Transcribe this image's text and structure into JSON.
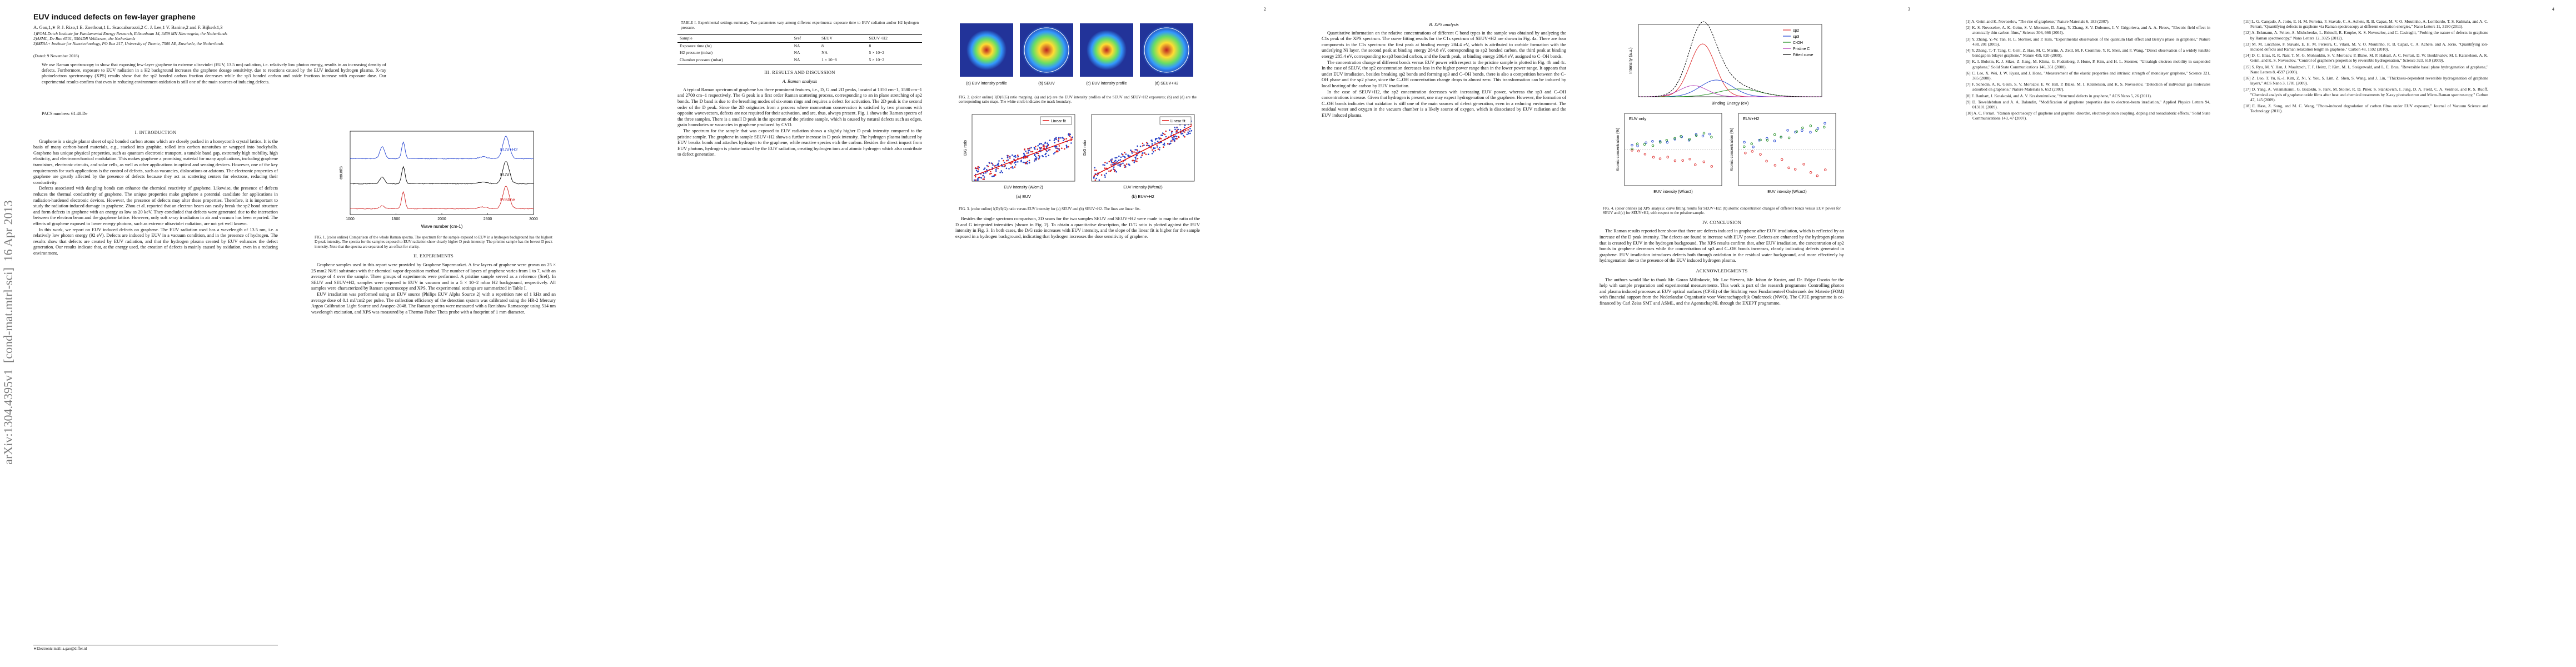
{
  "sidebar": "arXiv:1304.4395v1  [cond-mat.mtrl-sci]  16 Apr 2013",
  "page_numbers": [
    "2",
    "3",
    "4"
  ],
  "header": {
    "title": "EUV induced defects on few-layer graphene",
    "authors": "A. Gao,1,∗ P. J. Rizo,1 E. Zoethout,1 L. Scaccabarozzi,2 C. J. Lee,1 V. Banine,2 and F. Bijkerk1,3",
    "affiliations": [
      "1)FOM-Dutch Institute for Fundamental Energy Research, Edisonbaan 14, 3439 MN Nieuwegein, the Netherlands",
      "2)ASML, De Run 6501, 5504DR Veldhoven, the Netherlands",
      "3)MESA+ Institute for Nanotechnology, PO Box 217, University of Twente, 7500 AE, Enschede, the Netherlands"
    ],
    "date": "(Dated: 9 November 2018)",
    "abstract": "We use Raman spectroscopy to show that exposing few-layer graphene to extreme ultraviolet (EUV, 13.5 nm) radiation, i.e. relatively low photon energy, results in an increasing density of defects. Furthermore, exposure to EUV radiation in a H2 background increases the graphene dosage sensitivity, due to reactions caused by the EUV induced hydrogen plasma. X-ray photoelectron spectroscopy (XPS) results show that the sp2 bonded carbon fraction decreases while the sp3 bonded carbon and oxide fractions increase with exposure dose. Our experimental results confirm that even in reducing environment oxidation is still one of the main sources of inducing defects.",
    "pacs": "PACS numbers: 61.48.De"
  },
  "footnote": "∗Electronic mail: a.gao@differ.nl",
  "body": {
    "intro": {
      "heading": "I.  INTRODUCTION",
      "paragraphs": [
        "Graphene is a single planar sheet of sp2 bonded carbon atoms which are closely packed in a honeycomb crystal lattice. It is the basis of many carbon-based materials, e.g., stacked into graphite, rolled into carbon nanotubes or wrapped into buckyballs. Graphene has unique physical properties, such as quantum electronic transport, a tunable band gap, extremely high mobility, high elasticity, and electromechanical modulation. This makes graphene a promising material for many applications, including graphene transistors, electronic circuits, and solar cells, as well as other applications in optical and sensing devices. However, one of the key requirements for such applications is the control of defects, such as vacancies, dislocations or adatoms. The electronic properties of graphene are greatly affected by the presence of defects because they act as scattering centers for electrons, reducing their conductivity.",
        "Defects associated with dangling bonds can enhance the chemical reactivity of graphene. Likewise, the presence of defects reduces the thermal conductivity of graphene. The unique properties make graphene a potential candidate for applications in radiation-hardened electronic devices. However, the presence of defects may alter these properties. Therefore, it is important to study the radiation-induced damage in graphene. Zhou et al. reported that an electron beam can easily break the sp2 bond structure and form defects in graphene with an energy as low as 20 keV. They concluded that defects were generated due to the interaction between the electron beam and the graphene lattice. However, only soft x-ray irradiation in air and vacuum has been reported. The effects of graphene exposed to lower energy photons, such as extreme ultraviolet radiation, are not yet well known.",
        "In this work, we report on EUV induced defects on graphene. The EUV radiation used has a wavelength of 13.5 nm, i.e. a relatively low photon energy (92 eV). Defects are induced by EUV in a vacuum condition, and in the presence of hydrogen. The results show that defects are created by EUV radiation, and that the hydrogen plasma created by EUV enhances the defect generation. Our results indicate that, at the energy used, the creation of defects is mainly caused by oxidation, even in a reducing environment."
      ]
    },
    "experiments": {
      "heading": "II.  EXPERIMENTS",
      "paragraphs": [
        "Graphene samples used in this report were provided by Graphene Supermarket. A few layers of graphene were grown on 25 × 25 mm2 Ni/Si substrates with the chemical vapor deposition method. The number of layers of graphene varies from 1 to 7, with an average of 4 over the sample. Three groups of experiments were performed. A pristine sample served as a reference (Sref). In SEUV and SEUV+H2, samples were exposed to EUV in vacuum and in a 5 × 10−2 mbar H2 background, respectively. All samples were characterized by Raman spectroscopy and XPS. The experimental settings are summarized in Table I.",
        "EUV irradiation was performed using an EUV source (Philips EUV Alpha Source 2) with a repetition rate of 1 kHz and an average dose of 0.1 mJ/cm2 per pulse. The collection efficiency of the detection system was calibrated using the HR-2 Mercury Argon Calibration Light Source and Avaspec-2048. The Raman spectra were measured with a Renishaw Ramascope using 514 nm wavelength excitation, and XPS was measured by a Thermo Fisher Theta probe with a footprint of 1 mm diameter."
      ]
    },
    "results": {
      "heading": "III.  RESULTS AND DISCUSSION"
    },
    "raman": {
      "heading": "A.  Raman analysis",
      "paragraphs": [
        "A typical Raman spectrum of graphene has three prominent features, i.e., D, G and 2D peaks, located at 1350 cm−1, 1580 cm−1 and 2700 cm−1 respectively. The G peak is a first order Raman scattering process, corresponding to an in plane stretching of sp2 bonds. The D band is due to the breathing modes of six-atom rings and requires a defect for activation. The 2D peak is the second order of the D peak. Since the 2D originates from a process where momentum conservation is satisfied by two phonons with opposite wavevectors, defects are not required for their activation, and are, thus, always present. Fig. 1 shows the Raman spectra of the three samples. There is a small D peak in the spectrum of the pristine sample, which is caused by natural defects such as edges, grain boundaries or vacancies in graphene produced by CVD.",
        "The spectrum for the sample that was exposed to EUV radiation shows a slightly higher D peak intensity compared to the pristine sample. The graphene in sample SEUV+H2 shows a further increase in D peak intensity. The hydrogen plasma induced by EUV breaks bonds and attaches hydrogen to the graphene, while reactive species etch the carbon. Besides the direct impact from EUV photons, hydrogen is photo-ionized by the EUV radiation, creating hydrogen ions and atomic hydrogen which also contribute to defect generation.",
        "Besides the single spectrum comparison, 2D scans for the two samples SEUV and SEUV+H2 were made to map the ratio of the D and G integrated intensities (shown in Fig. 2). To obtain a quantitative description, the D/G ratio is plotted against the EUV intensity in Fig. 3. In both cases, the D/G ratio increases with EUV intensity, and the slope of the linear fit is higher for the sample exposed in a hydrogen background, indicating that hydrogen increases the dose sensitivity of graphene."
      ]
    },
    "xps": {
      "heading": "B.  XPS analysis",
      "paragraphs": [
        "Quantitative information on the relative concentrations of different C bond types in the sample was obtained by analyzing the C1s peak of the XPS spectrum. The curve fitting results for the C1s spectrum of SEUV+H2 are shown in Fig. 4a. There are four components in the C1s spectrum: the first peak at binding energy 284.4 eV, which is attributed to carbide formation with the underlying Ni layer, the second peak at binding energy 284.8 eV, corresponding to sp2 bonded carbon, the third peak at binding energy 285.4 eV, corresponding to sp3 bonded carbon, and the fourth peak, at binding energy 286.4 eV, assigned to C–OH bonds.",
        "The concentration change of different bonds versus EUV power with respect to the pristine sample is plotted in Fig. 4b and 4c. In the case of SEUV, the sp2 concentration decreases less in the higher power range than in the lower power range. It appears that under EUV irradiation, besides breaking sp2 bonds and forming sp3 and C–OH bonds, there is also a competition between the C–OH phase and the sp2 phase, since the C–OH concentration change drops to almost zero. This transformation can be induced by local heating of the carbon by EUV irradiation.",
        "In the case of SEUV+H2, the sp2 concentration decreases with increasing EUV power, whereas the sp3 and C–OH concentrations increase. Given that hydrogen is present, one may expect hydrogenation of the graphene. However, the formation of C–OH bonds indicates that oxidation is still one of the main sources of defect generation, even in a reducing environment. The residual water and oxygen in the vacuum chamber is a likely source of oxygen, which is dissociated by EUV radiation and the EUV induced plasma."
      ]
    },
    "conclusion": {
      "heading": "IV.  CONCLUSION",
      "paragraphs": [
        "The Raman results reported here show that there are defects induced in graphene after EUV irradiation, which is reflected by an increase of the D peak intensity. The defects are found to increase with EUV power. Defects are enhanced by the hydrogen plasma that is created by EUV in the hydrogen background. The XPS results confirm that, after EUV irradiation, the concentration of sp2 bonds in graphene decreases while the concentration of sp3 and C–OH bonds increases, clearly indicating defects generated in graphene. EUV irradiation introduces defects both through oxidation in the residual water background, and more effectively by hydrogenation due to the presence of the EUV induced hydrogen plasma."
      ]
    },
    "acknowledgments": {
      "heading": "ACKNOWLEDGMENTS",
      "paragraphs": [
        "The authors would like to thank Mr. Goran Milinkovic, Mr. Luc Stevens, Mr. Johan de Kuster, and Dr. Edgar Osorio for the help with sample preparation and experimental measurements. This work is part of the research programme Controlling photon and plasma induced processes at EUV optical surfaces (CP3E) of the Stichting voor Fundamenteel Onderzoek der Materie (FOM) with financial support from the Nederlandse Organisatie voor Wetenschappelijk Onderzoek (NWO). The CP3E programme is co-financed by Carl Zeiss SMT and ASML, and the AgentschapNL through the EXEPT programme."
      ]
    }
  },
  "table": {
    "caption": "TABLE I. Experimental settings summary. Two parameters vary among different experiments: exposure time to EUV radiation and/or H2 hydrogen pressure.",
    "columns": [
      "Sample",
      "Sref",
      "SEUV",
      "SEUV+H2"
    ],
    "rows": [
      [
        "Exposure time (hr)",
        "NA",
        "8",
        "8"
      ],
      [
        "H2 pressure (mbar)",
        "NA",
        "NA",
        "5 × 10−2"
      ],
      [
        "Chamber pressure (mbar)",
        "NA",
        "1 × 10−8",
        "5 × 10−2"
      ]
    ]
  },
  "figures": [
    {
      "caption": "FIG. 1. (color online) Comparison of the whole Raman spectra. The spectrum for the sample exposed to EUV in a hydrogen background has the highest D peak intensity. The spectra for the samples exposed to EUV radiation show clearly higher D peak intensity. The pristine sample has the lowest D peak intensity. Note that the spectra are separated by an offset for clarity.",
      "ylabel": "counts",
      "xlabel": "Wave number (cm-1)",
      "curves": [
        "EUV+H2",
        "EUV",
        "Pristine"
      ],
      "xticks": [
        "1000",
        "1500",
        "2000",
        "2500",
        "3000"
      ]
    },
    {
      "caption": "FIG. 2. (color online) I(D)/I(G) ratio mapping. (a) and (c) are the EUV intensity profiles of the SEUV and SEUV+H2 exposures; (b) and (d) are the corresponding ratio maps. The white circle indicates the mask boundary.",
      "panels": [
        "(a) EUV intensity profile",
        "(b) SEUV",
        "(c) EUV intensity profile",
        "(d) SEUV+H2"
      ]
    },
    {
      "caption": "FIG. 3. (color online) I(D)/I(G) ratio versus EUV intensity for (a) SEUV and (b) SEUV+H2. The lines are linear fits.",
      "ylabel": "D/G ratio",
      "xlabel": "EUV intensity (W/cm2)",
      "legend": "Linear fit",
      "panels": [
        "(a) EUV",
        "(b) EUV+H2"
      ]
    },
    {
      "caption": "FIG. 4. (color online) (a) XPS analysis: curve fitting results for SEUV+H2; (b) atomic concentration changes of different bonds versus EUV power for SEUV and (c) for SEUV+H2, with respect to the pristine sample.",
      "xlabel": "Binding Energy (eV)",
      "ylabel": "Intensity (a.u.)",
      "legend": [
        "sp2",
        "sp3",
        "C-OH",
        "Pristine C",
        "Fitted curve"
      ],
      "panels": [
        "EUV only",
        "EUV+H2"
      ],
      "panel_ylabel": "Atomic concentration (%)",
      "panel_xlabel": "EUV intensity (W/cm2)"
    }
  ],
  "references": [
    "[1] A. Geim and K. Novoselov, \"The rise of graphene,\" Nature Materials 6, 183 (2007).",
    "[2] K. S. Novoselov, A. K. Geim, S. V. Morozov, D. Jiang, Y. Zhang, S. V. Dubonos, I. V. Grigorieva, and A. A. Firsov, \"Electric field effect in atomically thin carbon films,\" Science 306, 666 (2004).",
    "[3] Y. Zhang, Y.-W. Tan, H. L. Stormer, and P. Kim, \"Experimental observation of the quantum Hall effect and Berry's phase in graphene,\" Nature 438, 201 (2005).",
    "[4] Y. Zhang, T.-T. Tang, C. Girit, Z. Hao, M. C. Martin, A. Zettl, M. F. Crommie, Y. R. Shen, and F. Wang, \"Direct observation of a widely tunable bandgap in bilayer graphene,\" Nature 459, 820 (2009).",
    "[5] K. I. Bolotin, K. J. Sikes, Z. Jiang, M. Klima, G. Fudenberg, J. Hone, P. Kim, and H. L. Stormer, \"Ultrahigh electron mobility in suspended graphene,\" Solid State Communications 146, 351 (2008).",
    "[6] C. Lee, X. Wei, J. W. Kysar, and J. Hone, \"Measurement of the elastic properties and intrinsic strength of monolayer graphene,\" Science 321, 385 (2008).",
    "[7] F. Schedin, A. K. Geim, S. V. Morozov, E. W. Hill, P. Blake, M. I. Katsnelson, and K. S. Novoselov, \"Detection of individual gas molecules adsorbed on graphene,\" Nature Materials 6, 652 (2007).",
    "[8] F. Banhart, J. Kotakoski, and A. V. Krasheninnikov, \"Structural defects in graphene,\" ACS Nano 5, 26 (2011).",
    "[9] D. Teweldebrhan and A. A. Balandin, \"Modification of graphene properties due to electron-beam irradiation,\" Applied Physics Letters 94, 013101 (2009).",
    "[10] A. C. Ferrari, \"Raman spectroscopy of graphene and graphite: disorder, electron-phonon coupling, doping and nonadiabatic effects,\" Solid State Communications 143, 47 (2007).",
    "[11] L. G. Cançado, A. Jorio, E. H. M. Ferreira, F. Stavale, C. A. Achete, R. B. Capaz, M. V. O. Moutinho, A. Lombardo, T. S. Kulmala, and A. C. Ferrari, \"Quantifying defects in graphene via Raman spectroscopy at different excitation energies,\" Nano Letters 11, 3190 (2011).",
    "[12] A. Eckmann, A. Felten, A. Mishchenko, L. Britnell, R. Krupke, K. S. Novoselov, and C. Casiraghi, \"Probing the nature of defects in graphene by Raman spectroscopy,\" Nano Letters 12, 3925 (2012).",
    "[13] M. M. Lucchese, F. Stavale, E. H. M. Ferreira, C. Vilani, M. V. O. Moutinho, R. B. Capaz, C. A. Achete, and A. Jorio, \"Quantifying ion-induced defects and Raman relaxation length in graphene,\" Carbon 48, 1592 (2010).",
    "[14] D. C. Elias, R. R. Nair, T. M. G. Mohiuddin, S. V. Morozov, P. Blake, M. P. Halsall, A. C. Ferrari, D. W. Boukhvalov, M. I. Katsnelson, A. K. Geim, and K. S. Novoselov, \"Control of graphene's properties by reversible hydrogenation,\" Science 323, 610 (2009).",
    "[15] S. Ryu, M. Y. Han, J. Maultzsch, T. F. Heinz, P. Kim, M. L. Steigerwald, and L. E. Brus, \"Reversible basal plane hydrogenation of graphene,\" Nano Letters 8, 4597 (2008).",
    "[16] Z. Luo, T. Yu, K.-J. Kim, Z. Ni, Y. You, S. Lim, Z. Shen, S. Wang, and J. Lin, \"Thickness-dependent reversible hydrogenation of graphene layers,\" ACS Nano 3, 1781 (2009).",
    "[17] D. Yang, A. Velamakanni, G. Bozoklu, S. Park, M. Stoller, R. D. Piner, S. Stankovich, I. Jung, D. A. Field, C. A. Ventrice, and R. S. Ruoff, \"Chemical analysis of graphene oxide films after heat and chemical treatments by X-ray photoelectron and Micro-Raman spectroscopy,\" Carbon 47, 145 (2009).",
    "[18] E. Hass, Z. Song, and M. C. Wang, \"Photo-induced degradation of carbon films under EUV exposure,\" Journal of Vacuum Science and Technology (2011)."
  ]
}
